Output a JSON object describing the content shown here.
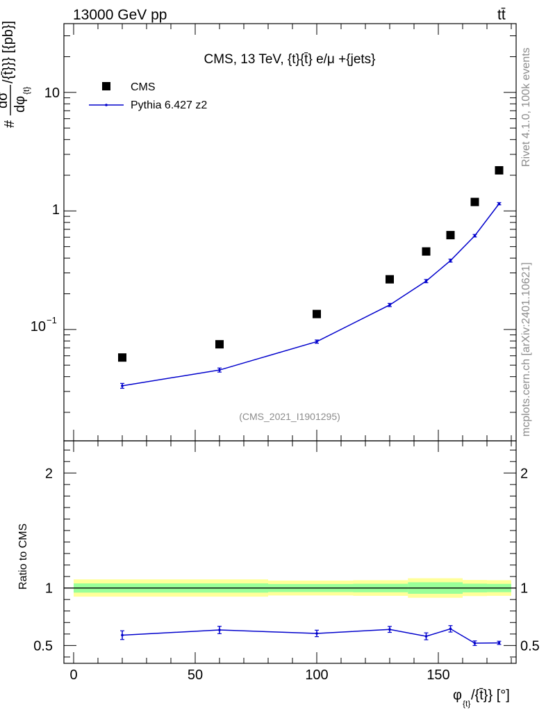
{
  "header": {
    "energy_label": "13000 GeV pp",
    "process_label": "tt̄"
  },
  "side_labels": {
    "rivet": "Rivet 4.1.0,  100k events",
    "mcplots": "mcplots.cern.ch [arXiv:2401.10621]"
  },
  "chart_data": [
    {
      "type": "scatter",
      "title": "CMS, 13 TeV, {t}{t̄} e/μ +{jets}",
      "analysis_id": "(CMS_2021_I1901295)",
      "ylabel": "d σ / d φ_{t}/{t̄}  [{pb}]",
      "ylabel_parts": {
        "prefix": "#",
        "numerator": "dσ",
        "denominator": "dφ",
        "sub": "{t}",
        "suffix": "/{t̄}}} [{pb}]"
      },
      "yscale": "log",
      "ylim": [
        0.0115,
        38
      ],
      "xlim": [
        -4,
        182
      ],
      "y_tick_labels": [
        "10",
        "1",
        "10"
      ],
      "y_tick_exp": "−1",
      "legend": [
        {
          "name": "CMS",
          "marker": "square",
          "color": "#000000"
        },
        {
          "name": "Pythia 6.427 z2",
          "marker": "line",
          "color": "#0000cc"
        }
      ],
      "legend_position": "top-left",
      "series": [
        {
          "name": "CMS",
          "x": [
            20,
            60,
            100,
            130,
            145,
            155,
            165,
            175
          ],
          "y": [
            0.058,
            0.075,
            0.135,
            0.265,
            0.455,
            0.625,
            1.19,
            2.2
          ]
        },
        {
          "name": "Pythia 6.427 z2",
          "x": [
            20,
            60,
            100,
            130,
            145,
            155,
            165,
            175
          ],
          "y": [
            0.0335,
            0.0455,
            0.079,
            0.161,
            0.256,
            0.381,
            0.618,
            1.15
          ],
          "err": [
            0.0016,
            0.0018,
            0.0025,
            0.005,
            0.008,
            0.011,
            0.015,
            0.025
          ]
        }
      ]
    },
    {
      "type": "line",
      "ylabel": "Ratio to CMS",
      "xlabel": "φ_{t}/{t̄}} [°]",
      "xlabel_parts": {
        "phi": "φ",
        "sub": "{t}",
        "rest": "/{t̄}} [°]"
      },
      "xlim": [
        -4,
        182
      ],
      "ylim": [
        0.345,
        2.28
      ],
      "x_ticks": [
        0,
        50,
        100,
        150
      ],
      "y_ticks": [
        0.5,
        1,
        2
      ],
      "bands": {
        "yellow_half_width": [
          0.075,
          0.075,
          0.065,
          0.068,
          0.085,
          0.085,
          0.07,
          0.068
        ],
        "green_half_width": [
          0.04,
          0.04,
          0.035,
          0.037,
          0.05,
          0.05,
          0.038,
          0.036
        ]
      },
      "series": [
        {
          "name": "Pythia 6.427 z2",
          "x": [
            20,
            60,
            100,
            130,
            145,
            155,
            165,
            175
          ],
          "y": [
            0.59,
            0.635,
            0.605,
            0.64,
            0.58,
            0.645,
            0.52,
            0.523
          ],
          "err": [
            0.038,
            0.032,
            0.028,
            0.026,
            0.03,
            0.028,
            0.02,
            0.014
          ]
        }
      ]
    }
  ]
}
